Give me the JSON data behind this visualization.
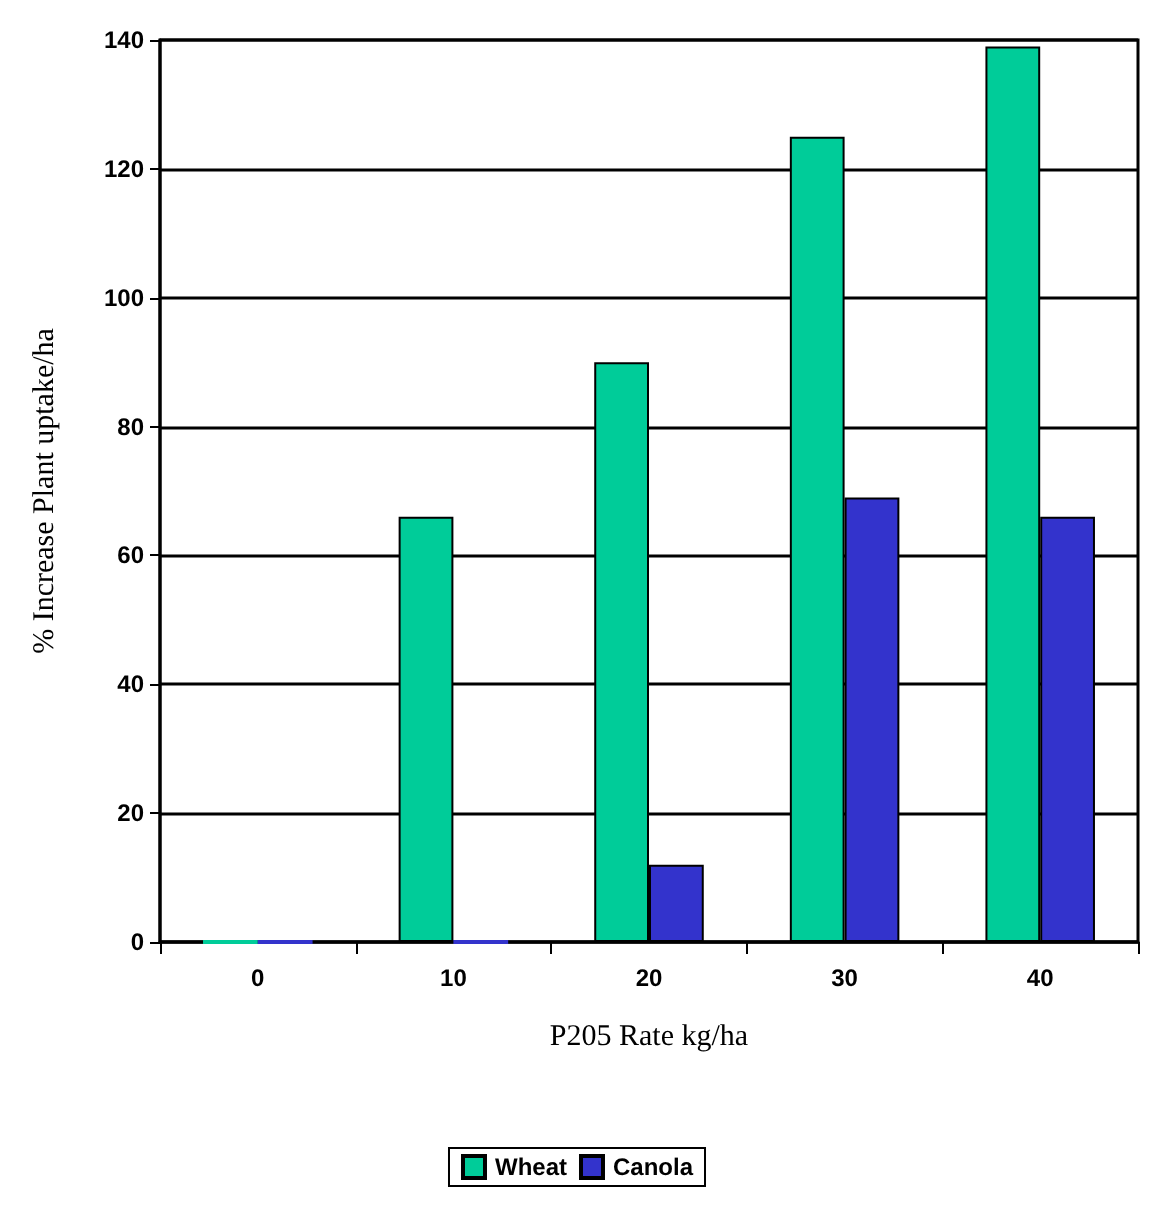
{
  "chart_data": {
    "type": "bar",
    "xlabel": "P205 Rate kg/ha",
    "ylabel": "% Increase Plant uptake/ha",
    "categories": [
      "0",
      "10",
      "20",
      "30",
      "40"
    ],
    "series": [
      {
        "name": "Wheat",
        "color": "#00cc99",
        "values": [
          0,
          66,
          90,
          125,
          139
        ]
      },
      {
        "name": "Canola",
        "color": "#3333cc",
        "values": [
          0,
          0,
          12,
          69,
          66
        ]
      }
    ],
    "ylim": [
      0,
      140
    ],
    "yticks": [
      0,
      20,
      40,
      60,
      80,
      100,
      120,
      140
    ],
    "grid": "y",
    "legend": "bottom"
  }
}
